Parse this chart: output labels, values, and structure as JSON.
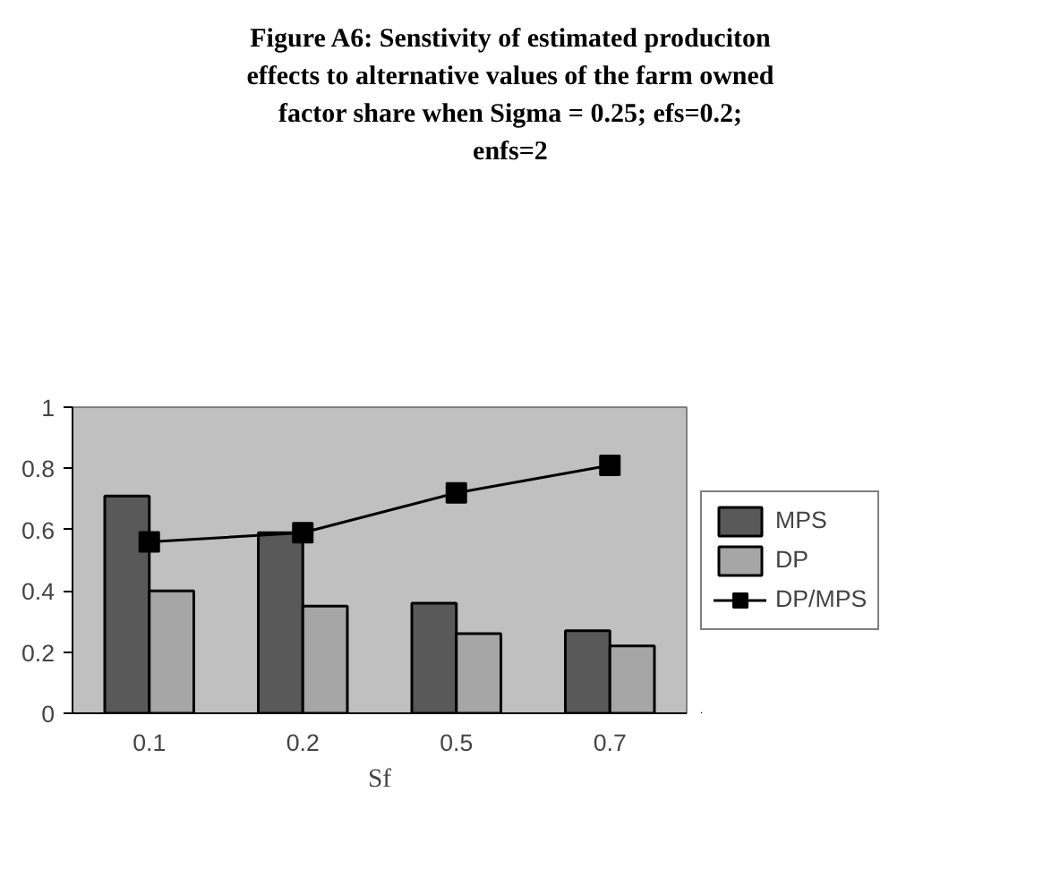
{
  "chart_data": {
    "type": "bar",
    "title": "Figure A6: Senstivity of estimated produciton\neffects to alternative values of the farm owned\nfactor share when Sigma = 0.25; efs=0.2;\nenfs=2",
    "xlabel": "Sf",
    "categories": [
      "0.1",
      "0.2",
      "0.5",
      "0.7"
    ],
    "series": [
      {
        "name": "MPS",
        "color": "#595959",
        "values": [
          0.71,
          0.59,
          0.36,
          0.27
        ]
      },
      {
        "name": "DP",
        "color": "#a6a6a6",
        "values": [
          0.4,
          0.35,
          0.26,
          0.22
        ]
      },
      {
        "name": "DP/MPS",
        "type": "line",
        "color": "#000000",
        "marker": "square",
        "values": [
          0.56,
          0.59,
          0.72,
          0.81
        ]
      }
    ],
    "ylim": [
      0,
      1
    ],
    "yticks": [
      0,
      0.2,
      0.4,
      0.6,
      0.8,
      1
    ],
    "grid": false,
    "legend": "right"
  }
}
